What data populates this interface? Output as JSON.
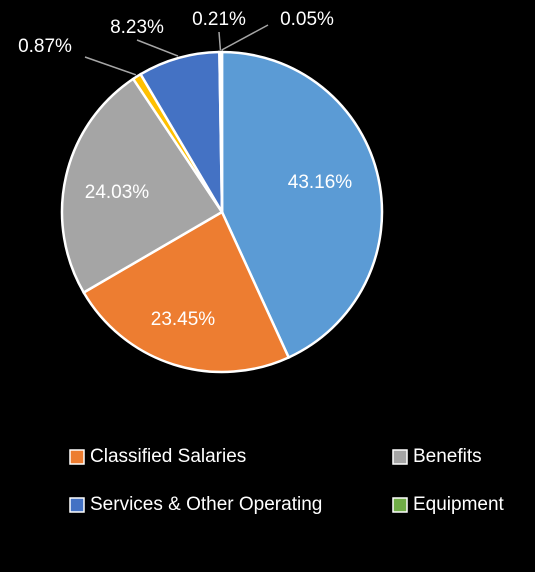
{
  "chart_data": {
    "type": "pie",
    "categories": [
      null,
      "Classified Salaries",
      "Benefits",
      null,
      "Services & Other Operating",
      "Equipment",
      null
    ],
    "values": [
      43.16,
      23.45,
      24.03,
      0.87,
      8.23,
      0.21,
      0.05
    ],
    "value_labels": [
      "43.16%",
      "23.45%",
      "24.03%",
      "0.87%",
      "8.23%",
      "0.21%",
      "0.05%"
    ],
    "colors": [
      "#5b9bd5",
      "#ed7d31",
      "#a5a5a5",
      "#ffc000",
      "#4472c4",
      "#70ad47",
      "#264478"
    ],
    "legend": "bottom"
  }
}
